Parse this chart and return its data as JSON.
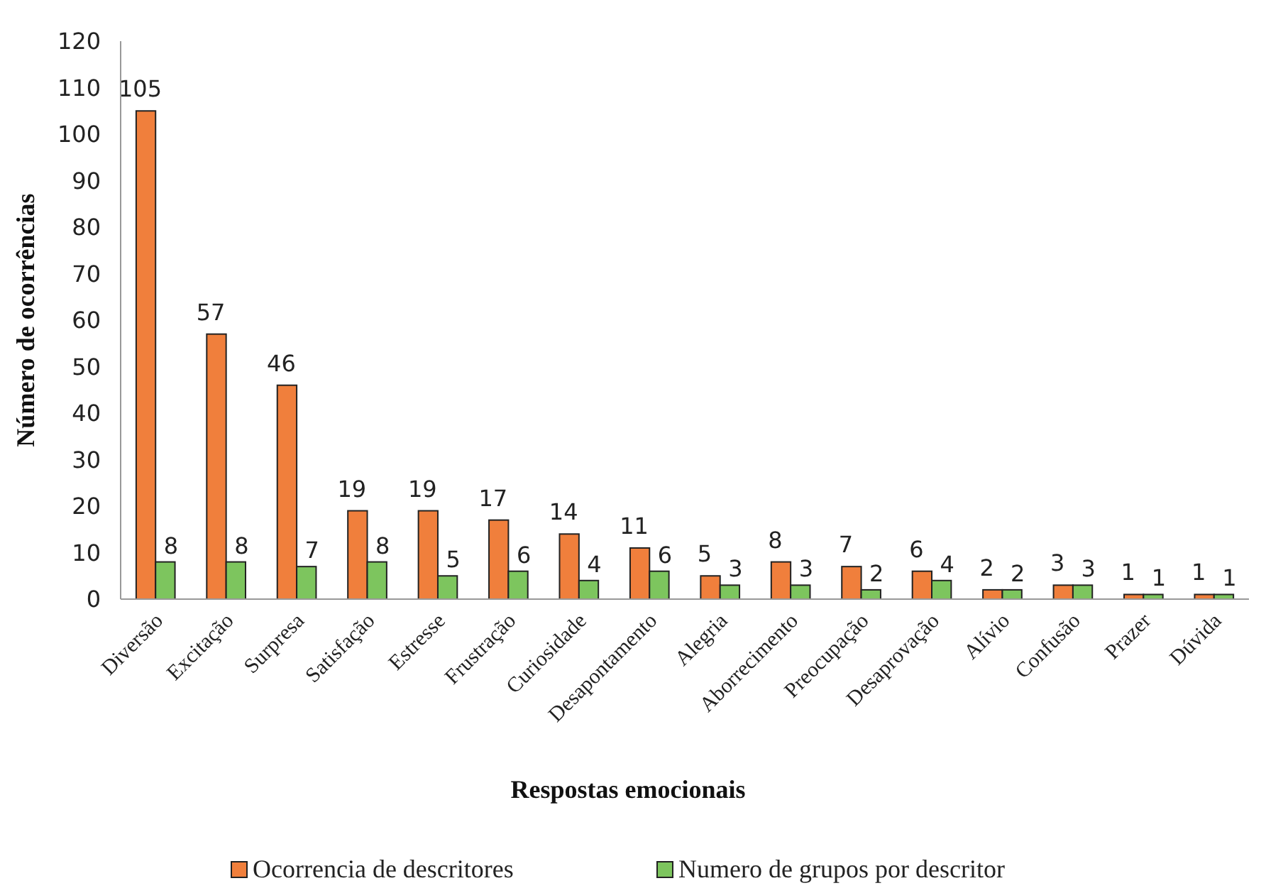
{
  "chart_data": {
    "type": "bar",
    "xlabel": "Respostas emocionais",
    "ylabel": "Número de ocorrências",
    "categories": [
      "Diversão",
      "Excitação",
      "Surpresa",
      "Satisfação",
      "Estresse",
      "Frustração",
      "Curiosidade",
      "Desapontamento",
      "Alegria",
      "Aborrecimento",
      "Preocupação",
      "Desaprovação",
      "Alívio",
      "Confusão",
      "Prazer",
      "Dúvida"
    ],
    "series": [
      {
        "name": "Ocorrencia de descritores",
        "color": "#f07f3c",
        "values": [
          105,
          57,
          46,
          19,
          19,
          17,
          14,
          11,
          5,
          8,
          7,
          6,
          2,
          3,
          1,
          1
        ]
      },
      {
        "name": "Numero de grupos por descritor",
        "color": "#7dc55e",
        "values": [
          8,
          8,
          7,
          8,
          5,
          6,
          4,
          6,
          3,
          3,
          2,
          4,
          2,
          3,
          1,
          1
        ]
      }
    ],
    "ylim": [
      0,
      120
    ],
    "yticks": [
      0,
      10,
      20,
      30,
      40,
      50,
      60,
      70,
      80,
      90,
      100,
      110,
      120
    ],
    "data_labels": true,
    "legend": "bottom"
  }
}
